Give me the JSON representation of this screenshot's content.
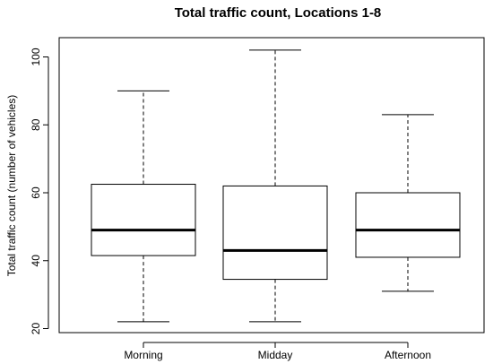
{
  "chart_data": {
    "type": "box",
    "title": "Total traffic count, Locations 1-8",
    "xlabel": "",
    "ylabel": "Total traffic count (number of vehicles)",
    "ylim": [
      20,
      105
    ],
    "yticks": [
      20,
      40,
      60,
      80,
      100
    ],
    "grid": false,
    "categories": [
      "Morning",
      "Midday",
      "Afternoon"
    ],
    "boxes": [
      {
        "category": "Morning",
        "min": 22,
        "q1": 41.5,
        "median": 49,
        "q3": 62.5,
        "max": 90
      },
      {
        "category": "Midday",
        "min": 22,
        "q1": 34.5,
        "median": 43,
        "q3": 62,
        "max": 102
      },
      {
        "category": "Afternoon",
        "min": 31,
        "q1": 41,
        "median": 49,
        "q3": 60,
        "max": 83
      }
    ]
  }
}
